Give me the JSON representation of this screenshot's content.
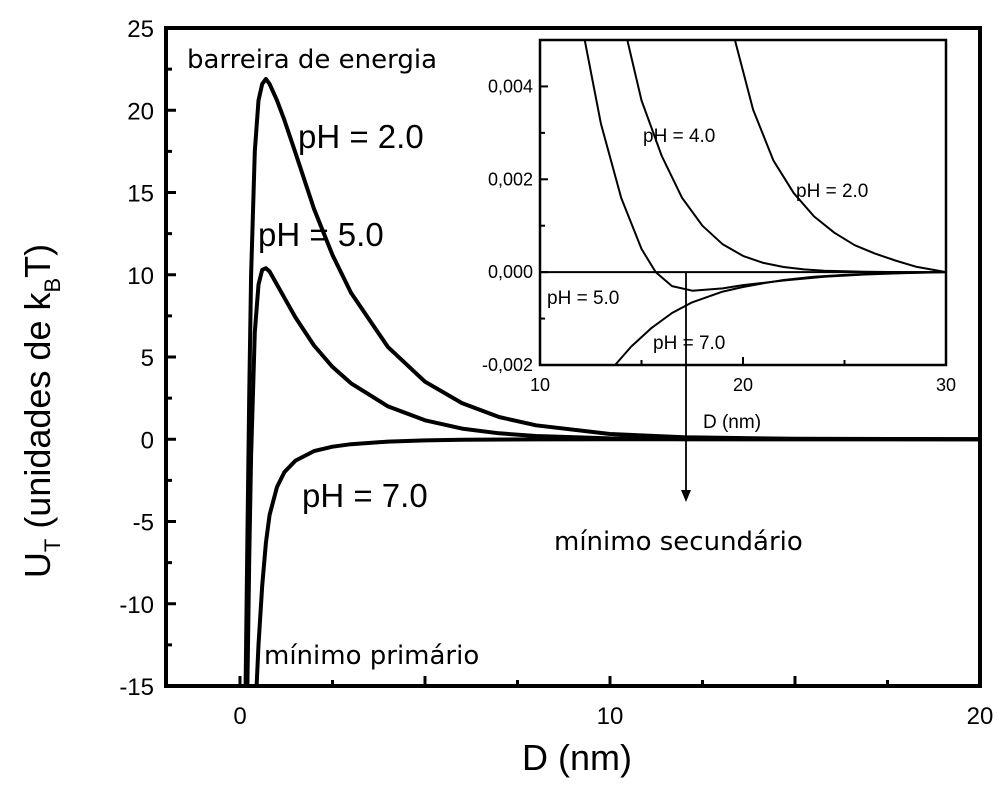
{
  "chart_data": [
    {
      "type": "line",
      "xlabel": "D (nm)",
      "ylabel_main": "U",
      "ylabel_sub": "T",
      "ylabel_rest_open": " (unidades de k",
      "ylabel_rest_sub": "B",
      "ylabel_rest_close": "T)",
      "xlim": [
        -2,
        20
      ],
      "ylim": [
        -15,
        25
      ],
      "x_ticks": [
        0,
        10,
        20
      ],
      "x_tick_labels": [
        "0",
        "10",
        "20"
      ],
      "y_ticks": [
        -15,
        -10,
        -5,
        0,
        5,
        10,
        15,
        20,
        25
      ],
      "y_tick_labels": [
        "-15",
        "-10",
        "-5",
        "0",
        "5",
        "10",
        "15",
        "20",
        "25"
      ],
      "series": [
        {
          "name": "pH = 2.0",
          "x": [
            0.15,
            0.2,
            0.25,
            0.3,
            0.4,
            0.5,
            0.6,
            0.7,
            0.8,
            1.0,
            1.2,
            1.5,
            2.0,
            2.5,
            3.0,
            4.0,
            5.0,
            6.0,
            7.0,
            8.0,
            10.0,
            12.0,
            15.0,
            20.0
          ],
          "y": [
            -15,
            -6,
            3,
            10,
            17.5,
            20.6,
            21.6,
            21.9,
            21.6,
            20.6,
            19.4,
            17.4,
            14.0,
            11.2,
            8.9,
            5.6,
            3.5,
            2.2,
            1.35,
            0.85,
            0.32,
            0.12,
            0.03,
            0.0
          ]
        },
        {
          "name": "pH = 5.0",
          "x": [
            0.2,
            0.25,
            0.3,
            0.4,
            0.5,
            0.6,
            0.7,
            0.8,
            1.0,
            1.2,
            1.5,
            2.0,
            2.5,
            3.0,
            4.0,
            5.0,
            6.0,
            7.0,
            8.0,
            10.0,
            12.0,
            15.0,
            20.0
          ],
          "y": [
            -15,
            -7,
            -1,
            6.5,
            9.4,
            10.3,
            10.4,
            10.2,
            9.4,
            8.6,
            7.4,
            5.7,
            4.4,
            3.4,
            2.0,
            1.15,
            0.65,
            0.36,
            0.2,
            0.05,
            0.01,
            0.0,
            0.0
          ]
        },
        {
          "name": "pH = 7.0",
          "x": [
            0.45,
            0.5,
            0.6,
            0.7,
            0.8,
            1.0,
            1.2,
            1.5,
            2.0,
            2.5,
            3.0,
            4.0,
            5.0,
            6.0,
            8.0,
            10.0,
            12.0,
            15.0,
            20.0
          ],
          "y": [
            -15,
            -12.5,
            -8.9,
            -6.3,
            -4.6,
            -2.9,
            -2.0,
            -1.3,
            -0.72,
            -0.45,
            -0.3,
            -0.14,
            -0.07,
            -0.035,
            -0.01,
            0.0,
            0.0,
            0.0,
            0.0
          ]
        }
      ],
      "annotations": {
        "barreira": "barreira de energia",
        "minimo_primario": "mínimo primário",
        "minimo_secundario": "mínimo secundário"
      },
      "secondary_minimum_x": 12
    },
    {
      "type": "line",
      "xlabel": "D (nm)",
      "xlim": [
        10,
        30
      ],
      "ylim": [
        -0.002,
        0.005
      ],
      "x_ticks": [
        10,
        20,
        30
      ],
      "x_tick_labels": [
        "10",
        "20",
        "30"
      ],
      "y_ticks": [
        -0.002,
        0.0,
        0.002,
        0.004
      ],
      "y_tick_labels": [
        "-0,002",
        "0,000",
        "0,002",
        "0,004"
      ],
      "series": [
        {
          "name": "pH = 2.0",
          "x": [
            19.6,
            20.5,
            21.5,
            22.5,
            23.5,
            24.5,
            25.5,
            26.5,
            27.5,
            28.5,
            30.0
          ],
          "y": [
            0.005,
            0.0035,
            0.0024,
            0.0017,
            0.0012,
            0.00085,
            0.00058,
            0.0004,
            0.00025,
            0.00012,
            0.0
          ]
        },
        {
          "name": "pH = 4.0",
          "x": [
            14.3,
            15.0,
            16.0,
            17.0,
            18.0,
            19.0,
            20.0,
            21.0,
            22.0,
            23.0,
            24.0,
            26.0,
            28.0,
            30.0
          ],
          "y": [
            0.005,
            0.0037,
            0.0025,
            0.0016,
            0.001,
            0.0006,
            0.00035,
            0.0002,
            0.00011,
            6e-05,
            3e-05,
            1e-05,
            0.0,
            0.0
          ]
        },
        {
          "name": "pH = 5.0",
          "x": [
            12.2,
            13.0,
            14.0,
            15.0,
            15.7,
            16.5,
            17.5,
            19.0,
            20.0,
            22.0,
            24.0,
            26.0,
            28.0,
            30.0
          ],
          "y": [
            0.005,
            0.0032,
            0.0016,
            0.0005,
            0.0,
            -0.0003,
            -0.0004,
            -0.00035,
            -0.00028,
            -0.00018,
            -0.0001,
            -5e-05,
            -2e-05,
            0.0
          ]
        },
        {
          "name": "pH = 7.0",
          "x": [
            13.7,
            14.5,
            15.5,
            16.5,
            17.5,
            19.0,
            20.0,
            21.0,
            22.0,
            23.5,
            25.0,
            27.0,
            30.0
          ],
          "y": [
            -0.002,
            -0.0016,
            -0.0012,
            -0.00088,
            -0.00065,
            -0.00042,
            -0.00032,
            -0.00024,
            -0.00017,
            -0.0001,
            -6e-05,
            -2e-05,
            0.0
          ]
        }
      ]
    }
  ]
}
